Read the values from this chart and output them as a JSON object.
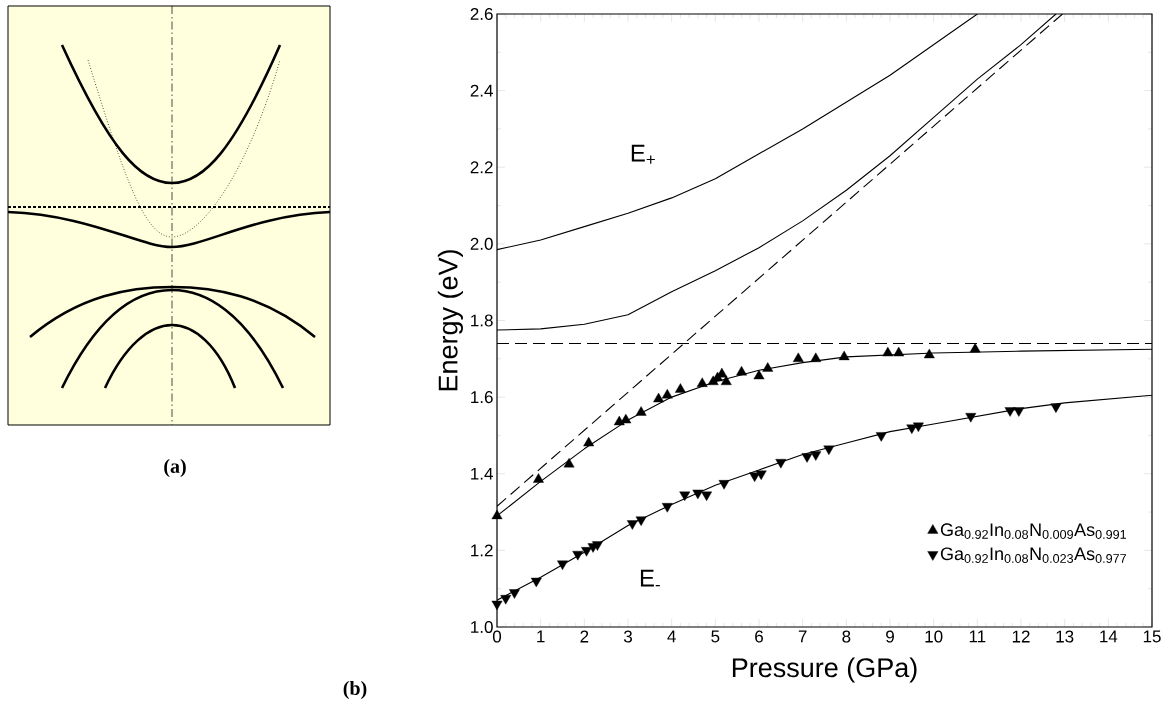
{
  "chart_data": {
    "type": "scatter",
    "xlabel": "Pressure (GPa)",
    "ylabel": "Energy (eV)",
    "xlim": [
      0,
      15
    ],
    "ylim": [
      1.0,
      2.6
    ],
    "xticks": [
      0,
      1,
      2,
      3,
      4,
      5,
      6,
      7,
      8,
      9,
      10,
      11,
      12,
      13,
      14,
      15
    ],
    "yticks": [
      {
        "value": 1.0,
        "label": "1.0"
      },
      1.2,
      1.4,
      1.6,
      1.8,
      {
        "value": 2.0,
        "label": "2.0"
      },
      2.2,
      2.4,
      2.6
    ],
    "legend": "bottom right",
    "grid": false,
    "series": [
      {
        "name": "Ga$_{0.92}$In$_{0.08}$N$_{0.009}$As$_{0.991}$",
        "color": "#000000",
        "marker": "triangle",
        "x": [
          0,
          0.95,
          1.65,
          2.1,
          2.8,
          2.95,
          3.3,
          3.7,
          3.9,
          4.2,
          4.7,
          4.95,
          5.05,
          5.15,
          5.25,
          5.6,
          6.0,
          6.2,
          6.9,
          7.3,
          7.95,
          8.95,
          9.2,
          9.9,
          10.95
        ],
        "values": [
          1.29,
          1.385,
          1.425,
          1.48,
          1.535,
          1.54,
          1.56,
          1.595,
          1.605,
          1.62,
          1.635,
          1.64,
          1.65,
          1.66,
          1.64,
          1.665,
          1.655,
          1.675,
          1.7,
          1.7,
          1.705,
          1.715,
          1.715,
          1.71,
          1.725
        ]
      },
      {
        "name": "Ga$_{0.92}$In$_{0.08}$N$_{0.023}$As$_{0.977}$",
        "color": "#000000",
        "marker": "triangle-down",
        "x": [
          0,
          0.2,
          0.4,
          0.9,
          1.5,
          1.85,
          2.05,
          2.2,
          2.3,
          3.1,
          3.3,
          3.9,
          4.3,
          4.6,
          4.8,
          5.2,
          5.9,
          6.05,
          6.5,
          7.1,
          7.3,
          7.6,
          8.8,
          9.5,
          9.65,
          10.85,
          11.75,
          11.95,
          12.8
        ],
        "values": [
          1.06,
          1.075,
          1.09,
          1.12,
          1.165,
          1.19,
          1.2,
          1.21,
          1.215,
          1.27,
          1.28,
          1.315,
          1.345,
          1.35,
          1.345,
          1.375,
          1.395,
          1.4,
          1.43,
          1.445,
          1.45,
          1.465,
          1.5,
          1.52,
          1.525,
          1.55,
          1.565,
          1.565,
          1.575
        ]
      },
      {
        "type": "line",
        "color": "#000000",
        "line_style": "solid",
        "x": [
          0,
          1,
          2,
          3,
          4,
          5,
          6,
          7,
          8,
          9,
          10,
          11
        ],
        "values": [
          1.985,
          2.01,
          2.045,
          2.08,
          2.12,
          2.17,
          2.235,
          2.3,
          2.37,
          2.44,
          2.52,
          2.6
        ]
      },
      {
        "type": "line",
        "color": "#000000",
        "line_style": "solid",
        "x": [
          0,
          1,
          2,
          3,
          4,
          5,
          6,
          7,
          8,
          9,
          10,
          11,
          12,
          12.8
        ],
        "values": [
          1.775,
          1.778,
          1.79,
          1.815,
          1.875,
          1.93,
          1.99,
          2.06,
          2.14,
          2.23,
          2.33,
          2.43,
          2.52,
          2.6
        ]
      },
      {
        "type": "line",
        "color": "#000000",
        "line_style": "dashed",
        "x": [
          0,
          12.95
        ],
        "values": [
          1.315,
          2.6
        ]
      },
      {
        "type": "line",
        "color": "#000000",
        "line_style": "solid",
        "x": [
          0,
          1,
          2,
          3,
          4,
          5,
          6,
          7,
          8,
          10,
          12,
          15
        ],
        "values": [
          1.29,
          1.38,
          1.465,
          1.54,
          1.6,
          1.64,
          1.67,
          1.69,
          1.705,
          1.715,
          1.72,
          1.725
        ]
      },
      {
        "type": "line",
        "color": "#000000",
        "line_style": "solid",
        "x": [
          0,
          1,
          2,
          3,
          4,
          5,
          6,
          7,
          8,
          9,
          10,
          11,
          12,
          13,
          15
        ],
        "values": [
          1.07,
          1.13,
          1.195,
          1.265,
          1.32,
          1.37,
          1.41,
          1.45,
          1.48,
          1.51,
          1.53,
          1.55,
          1.57,
          1.585,
          1.605
        ]
      }
    ],
    "ref_lines": [
      {
        "axis": "y",
        "value": 1.74,
        "line_style": "dashed"
      }
    ],
    "annotations": [
      "E$_{+}$",
      "E$_{-}$",
      "(a)",
      "(b)"
    ]
  }
}
